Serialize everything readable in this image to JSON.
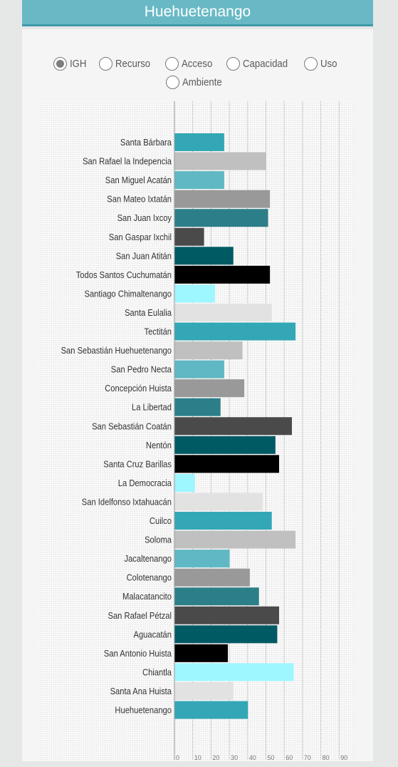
{
  "header": {
    "title": "Huehuetenango"
  },
  "options": [
    {
      "label": "IGH",
      "selected": true
    },
    {
      "label": "Recurso",
      "selected": false
    },
    {
      "label": "Acceso",
      "selected": false
    },
    {
      "label": "Capacidad",
      "selected": false
    },
    {
      "label": "Uso",
      "selected": false
    },
    {
      "label": "Ambiente",
      "selected": false
    }
  ],
  "chart_data": {
    "type": "bar",
    "orientation": "horizontal",
    "xlim": [
      0,
      100
    ],
    "ticks": [
      0,
      10,
      20,
      30,
      40,
      50,
      60,
      70,
      80,
      90
    ],
    "palette": [
      "#34a7b6",
      "#c0c0c0",
      "#5fb8c3",
      "#999999",
      "#2c7f88",
      "#4a4a4a",
      "#005a64",
      "#000000",
      "#9ef6ff",
      "#e2e2e2"
    ],
    "categories": [
      "Santa Bárbara",
      "San Rafael la Indepencia",
      "San Miguel Acatán",
      "San Mateo Ixtatán",
      "San Juan Ixcoy",
      "San Gaspar Ixchil",
      "San Juan Atitán",
      "Todos Santos Cuchumatán",
      "Santiago Chimaltenango",
      "Santa Eulalia",
      "Tectitán",
      "San Sebastián Huehuetenango",
      "San Pedro Necta",
      "Concepción Huista",
      "La Libertad",
      "San Sebastián Coatán",
      "Nentón",
      "Santa Cruz Barillas",
      "La Democracia",
      "San Idelfonso Ixtahuacán",
      "Cuilco",
      "Soloma",
      "Jacaltenango",
      "Colotenango",
      "Malacatancito",
      "San Rafael Pétzal",
      "Aguacatán",
      "San Antonio Huista",
      "Chiantla",
      "Santa Ana Huista",
      "Huehuetenango"
    ],
    "values": [
      27,
      50,
      27,
      52,
      51,
      16,
      32,
      52,
      22,
      53,
      66,
      37,
      27,
      38,
      25,
      64,
      55,
      57,
      11,
      48,
      53,
      66,
      30,
      41,
      46,
      57,
      56,
      29,
      65,
      32,
      40
    ]
  }
}
